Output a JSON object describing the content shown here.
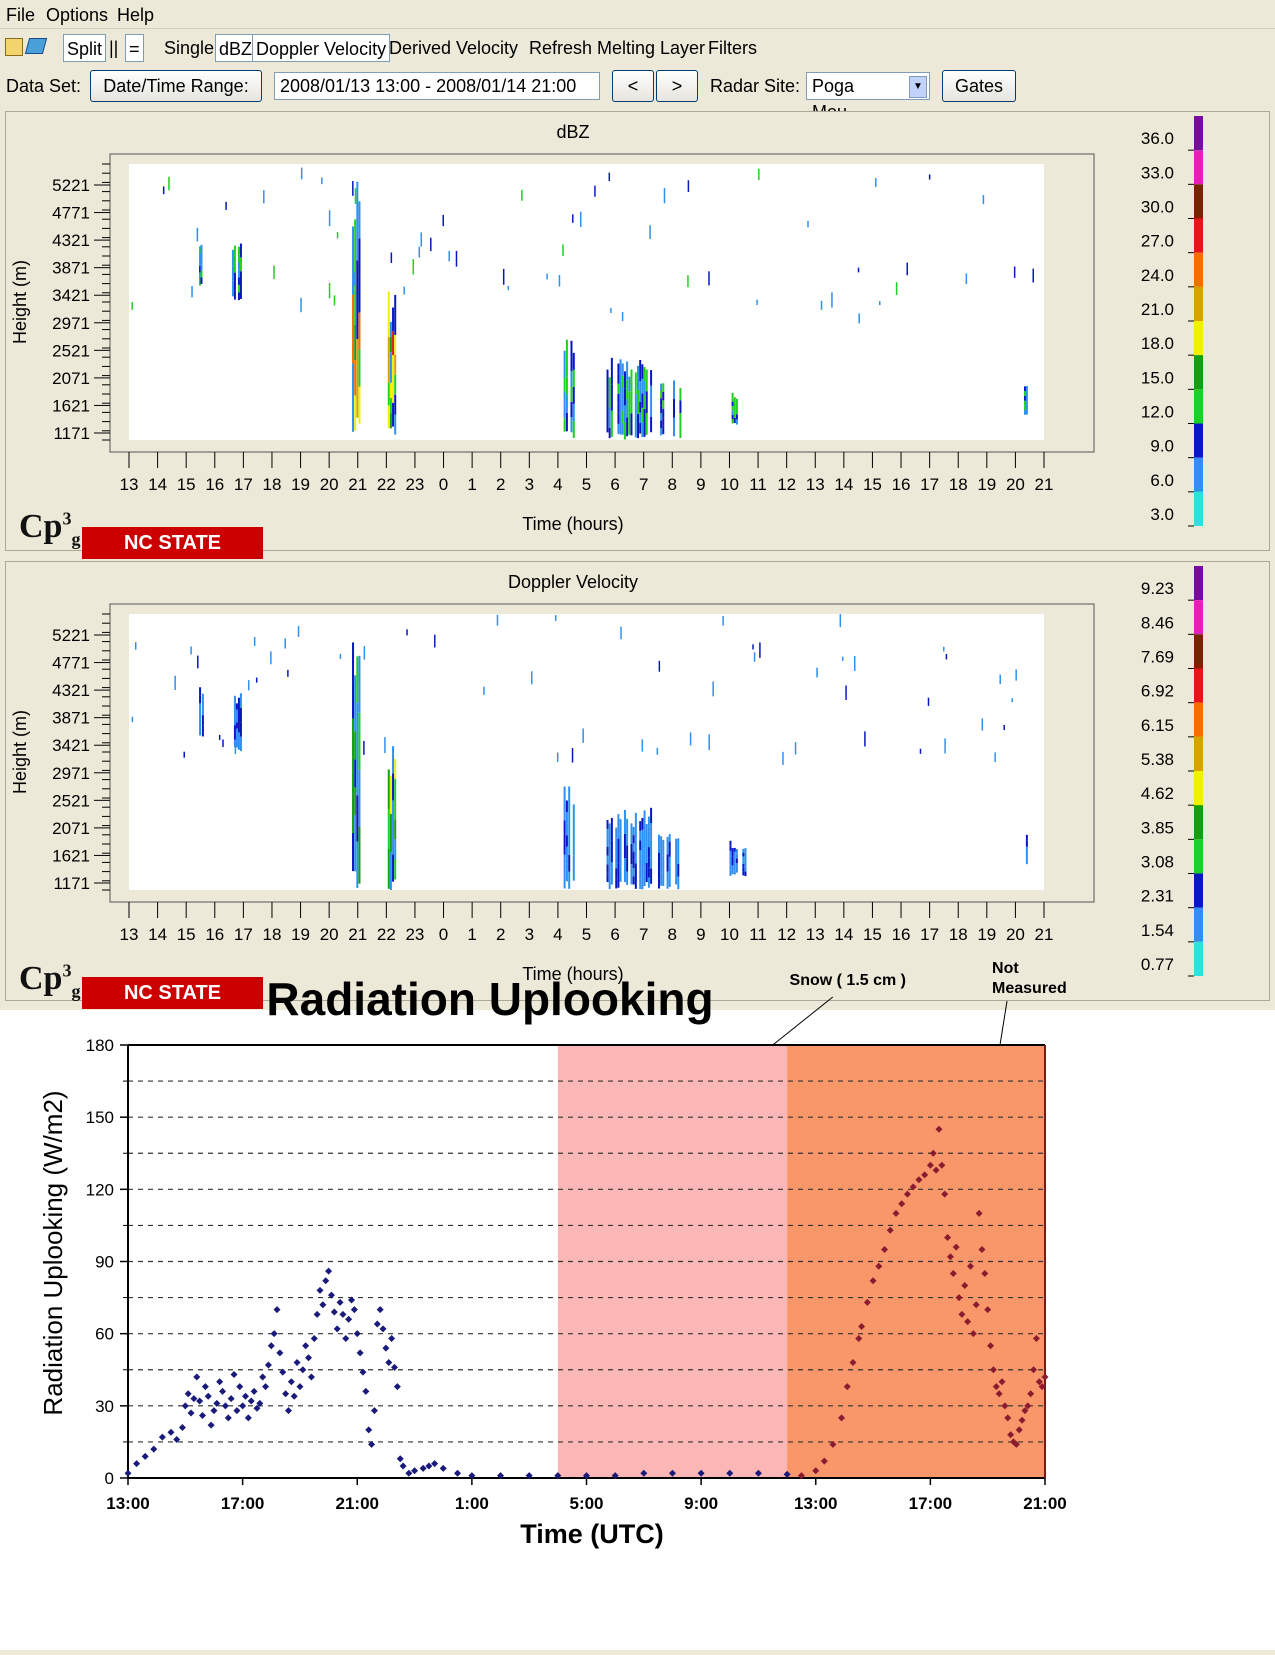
{
  "menu": {
    "file": "File",
    "options": "Options",
    "help": "Help"
  },
  "toolbar": {
    "split": "Split",
    "pipes": "||",
    "equals": "=",
    "single": "Single",
    "dbz": "dBZ",
    "doppler": "Doppler Velocity",
    "derived": "Derived Velocity",
    "refresh": "Refresh",
    "melting": "Melting Layer",
    "filters": "Filters"
  },
  "controls": {
    "dataset_label": "Data Set:",
    "date_range_button": "Date/Time Range:",
    "date_range_value": "2008/01/13 13:00 - 2008/01/14 21:00",
    "prev": "<",
    "next": ">",
    "radar_site_label": "Radar Site:",
    "radar_site_value": "Poga Mou...",
    "gates": "Gates"
  },
  "branding": {
    "cp3": "Cp3g",
    "nc_state": "NC STATE UNIVERSITY"
  },
  "radar_panels": [
    {
      "title": "dBZ",
      "ylabel": "Height (m)",
      "xlabel": "Time (hours)",
      "yticks": [
        "5221",
        "4771",
        "4321",
        "3871",
        "3421",
        "2971",
        "2521",
        "2071",
        "1621",
        "1171"
      ],
      "xticks": [
        "13",
        "14",
        "15",
        "16",
        "17",
        "18",
        "19",
        "20",
        "21",
        "22",
        "23",
        "0",
        "1",
        "2",
        "3",
        "4",
        "5",
        "6",
        "7",
        "8",
        "9",
        "10",
        "11",
        "12",
        "13",
        "14",
        "15",
        "16",
        "17",
        "18",
        "19",
        "20",
        "21"
      ],
      "colorbar": [
        "36.0",
        "33.0",
        "30.0",
        "27.0",
        "24.0",
        "21.0",
        "18.0",
        "15.0",
        "12.0",
        "9.0",
        "6.0",
        "3.0"
      ]
    },
    {
      "title": "Doppler Velocity",
      "ylabel": "Height (m)",
      "xlabel": "Time (hours)",
      "yticks": [
        "5221",
        "4771",
        "4321",
        "3871",
        "3421",
        "2971",
        "2521",
        "2071",
        "1621",
        "1171"
      ],
      "xticks": [
        "13",
        "14",
        "15",
        "16",
        "17",
        "18",
        "19",
        "20",
        "21",
        "22",
        "23",
        "0",
        "1",
        "2",
        "3",
        "4",
        "5",
        "6",
        "7",
        "8",
        "9",
        "10",
        "11",
        "12",
        "13",
        "14",
        "15",
        "16",
        "17",
        "18",
        "19",
        "20",
        "21"
      ],
      "colorbar": [
        "9.23",
        "8.46",
        "7.69",
        "6.92",
        "6.15",
        "5.38",
        "4.62",
        "3.85",
        "3.08",
        "2.31",
        "1.54",
        "0.77"
      ]
    }
  ],
  "colorbar_colors": [
    "#7a0aa0",
    "#e020c0",
    "#802000",
    "#e01818",
    "#f07000",
    "#d8a000",
    "#f0f000",
    "#10a010",
    "#20d020",
    "#0818c0",
    "#3090f0",
    "#30e0e0"
  ],
  "chart_data": {
    "type": "scatter",
    "title": "Radiation Uplooking",
    "xlabel": "Time (UTC)",
    "ylabel": "Radiation Uplooking (W/m2)",
    "xticks": [
      "13:00",
      "17:00",
      "21:00",
      "1:00",
      "5:00",
      "9:00",
      "13:00",
      "17:00",
      "21:00"
    ],
    "xlim_hours": [
      0,
      32
    ],
    "ylim": [
      0,
      180
    ],
    "yticks": [
      0,
      30,
      60,
      90,
      120,
      150,
      180
    ],
    "grid": "dashed horizontal",
    "shaded_regions": [
      {
        "start_hours": 15,
        "end_hours": 23,
        "color": "#fbb7b5"
      },
      {
        "start_hours": 23,
        "end_hours": 32,
        "color": "#f9966a"
      }
    ],
    "annotations": [
      {
        "text": "Snow ( 1.5 cm )",
        "hours": 22.5,
        "y": 180
      },
      {
        "text": "Not Measured",
        "hours": 30.5,
        "y": 180
      }
    ],
    "marker_color": "#1a1a7a",
    "marker_color_shaded": "#8a1c30",
    "series": [
      {
        "points": [
          [
            0,
            2
          ],
          [
            0.3,
            6
          ],
          [
            0.6,
            9
          ],
          [
            0.9,
            12
          ],
          [
            1.2,
            17
          ],
          [
            1.5,
            19
          ],
          [
            1.7,
            16
          ],
          [
            1.9,
            21
          ],
          [
            2.0,
            30
          ],
          [
            2.1,
            35
          ],
          [
            2.2,
            27
          ],
          [
            2.3,
            33
          ],
          [
            2.4,
            42
          ],
          [
            2.5,
            32
          ],
          [
            2.6,
            26
          ],
          [
            2.7,
            38
          ],
          [
            2.8,
            34
          ],
          [
            2.9,
            22
          ],
          [
            3.0,
            28
          ],
          [
            3.1,
            31
          ],
          [
            3.2,
            40
          ],
          [
            3.3,
            36
          ],
          [
            3.4,
            30
          ],
          [
            3.5,
            25
          ],
          [
            3.6,
            33
          ],
          [
            3.7,
            43
          ],
          [
            3.8,
            28
          ],
          [
            3.9,
            38
          ],
          [
            4.0,
            30
          ],
          [
            4.1,
            34
          ],
          [
            4.2,
            25
          ],
          [
            4.3,
            32
          ],
          [
            4.4,
            36
          ],
          [
            4.5,
            29
          ],
          [
            4.6,
            31
          ],
          [
            4.7,
            42
          ],
          [
            4.8,
            38
          ],
          [
            4.9,
            47
          ],
          [
            5.0,
            55
          ],
          [
            5.1,
            60
          ],
          [
            5.2,
            70
          ],
          [
            5.3,
            52
          ],
          [
            5.4,
            44
          ],
          [
            5.5,
            35
          ],
          [
            5.6,
            28
          ],
          [
            5.7,
            40
          ],
          [
            5.8,
            34
          ],
          [
            5.9,
            48
          ],
          [
            6.0,
            38
          ],
          [
            6.1,
            45
          ],
          [
            6.2,
            55
          ],
          [
            6.3,
            50
          ],
          [
            6.4,
            42
          ],
          [
            6.5,
            58
          ],
          [
            6.6,
            68
          ],
          [
            6.7,
            78
          ],
          [
            6.8,
            72
          ],
          [
            6.9,
            82
          ],
          [
            7.0,
            86
          ],
          [
            7.1,
            76
          ],
          [
            7.2,
            69
          ],
          [
            7.3,
            62
          ],
          [
            7.4,
            73
          ],
          [
            7.5,
            68
          ],
          [
            7.6,
            58
          ],
          [
            7.7,
            66
          ],
          [
            7.8,
            74
          ],
          [
            7.9,
            70
          ],
          [
            8.0,
            60
          ],
          [
            8.1,
            52
          ],
          [
            8.2,
            44
          ],
          [
            8.3,
            36
          ],
          [
            8.4,
            20
          ],
          [
            8.5,
            14
          ],
          [
            8.6,
            28
          ],
          [
            8.7,
            64
          ],
          [
            8.8,
            70
          ],
          [
            8.9,
            62
          ],
          [
            9.0,
            54
          ],
          [
            9.1,
            48
          ],
          [
            9.2,
            58
          ],
          [
            9.3,
            46
          ],
          [
            9.4,
            38
          ],
          [
            9.5,
            8
          ],
          [
            9.6,
            5
          ],
          [
            9.8,
            2
          ],
          [
            10.0,
            3
          ],
          [
            10.3,
            4
          ],
          [
            10.5,
            5
          ],
          [
            10.7,
            6
          ],
          [
            11,
            4
          ],
          [
            11.5,
            2
          ],
          [
            12,
            1
          ],
          [
            13,
            1
          ],
          [
            14,
            1
          ],
          [
            15,
            1
          ],
          [
            16,
            1
          ],
          [
            17,
            1
          ],
          [
            18,
            2
          ],
          [
            19,
            2
          ],
          [
            20,
            2
          ],
          [
            21,
            2
          ],
          [
            22,
            2
          ],
          [
            23,
            1.5
          ]
        ]
      },
      {
        "points": [
          [
            23.5,
            1
          ],
          [
            24,
            3
          ],
          [
            24.3,
            7
          ],
          [
            24.6,
            14
          ],
          [
            24.9,
            25
          ],
          [
            25.1,
            38
          ],
          [
            25.3,
            48
          ],
          [
            25.5,
            58
          ],
          [
            25.6,
            63
          ],
          [
            25.8,
            73
          ],
          [
            26.0,
            82
          ],
          [
            26.2,
            88
          ],
          [
            26.4,
            95
          ],
          [
            26.6,
            103
          ],
          [
            26.8,
            110
          ],
          [
            27.0,
            114
          ],
          [
            27.2,
            118
          ],
          [
            27.4,
            121
          ],
          [
            27.6,
            124
          ],
          [
            27.8,
            126
          ],
          [
            28.0,
            130
          ],
          [
            28.1,
            135
          ],
          [
            28.2,
            128
          ],
          [
            28.3,
            145
          ],
          [
            28.4,
            130
          ],
          [
            28.5,
            118
          ],
          [
            28.6,
            100
          ],
          [
            28.7,
            92
          ],
          [
            28.8,
            85
          ],
          [
            28.9,
            96
          ],
          [
            29.0,
            75
          ],
          [
            29.1,
            68
          ],
          [
            29.2,
            80
          ],
          [
            29.3,
            65
          ],
          [
            29.4,
            88
          ],
          [
            29.5,
            60
          ],
          [
            29.6,
            72
          ],
          [
            29.7,
            110
          ],
          [
            29.8,
            95
          ],
          [
            29.9,
            85
          ],
          [
            30.0,
            70
          ],
          [
            30.1,
            55
          ],
          [
            30.2,
            45
          ],
          [
            30.3,
            38
          ],
          [
            30.4,
            35
          ],
          [
            30.5,
            40
          ],
          [
            30.6,
            30
          ],
          [
            30.7,
            25
          ],
          [
            30.8,
            18
          ],
          [
            30.9,
            15
          ],
          [
            31.0,
            14
          ],
          [
            31.1,
            20
          ],
          [
            31.2,
            24
          ],
          [
            31.3,
            28
          ],
          [
            31.4,
            30
          ],
          [
            31.5,
            35
          ],
          [
            31.6,
            45
          ],
          [
            31.7,
            58
          ],
          [
            31.8,
            40
          ],
          [
            31.9,
            38
          ],
          [
            32.0,
            42
          ]
        ]
      }
    ]
  }
}
